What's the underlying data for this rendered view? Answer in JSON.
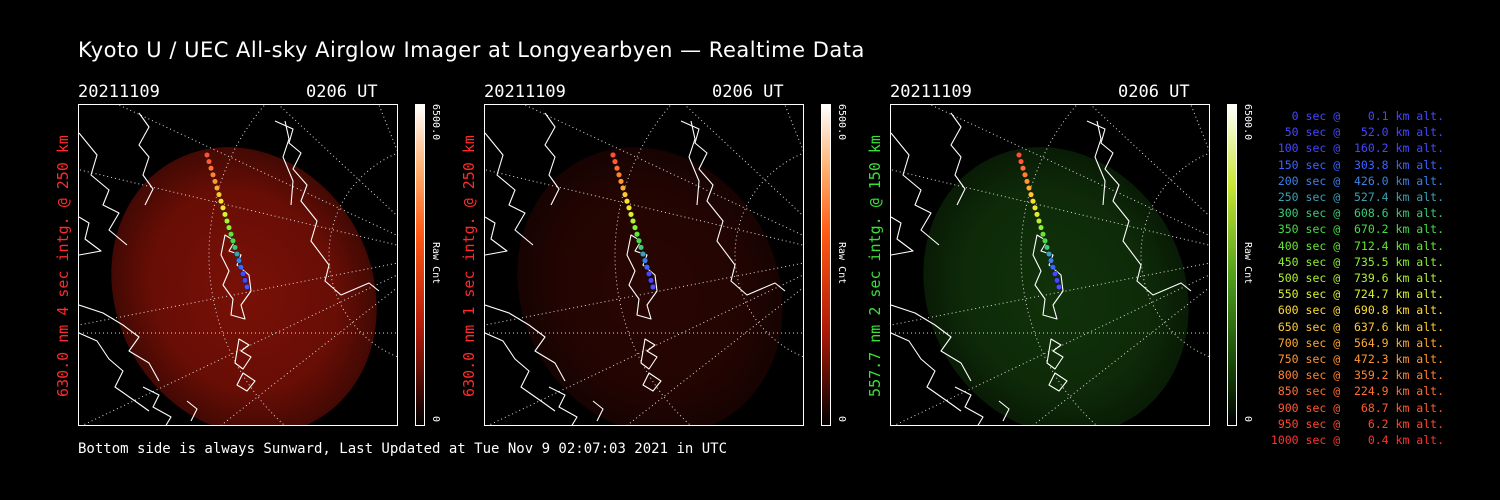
{
  "title": "Kyoto U / UEC All-sky Airglow Imager at Longyearbyen — Realtime Data",
  "footer": "Bottom side is always Sunward, Last Updated at Tue Nov  9 02:07:03 2021 in UTC",
  "panels": [
    {
      "date": "20211109",
      "time": "0206 UT",
      "label": "630.0 nm 4 sec intg. @ 250 km",
      "label_color": "#ff2a2a",
      "cbar_max": "6500.0",
      "cbar_min": "0",
      "cbar_label": "Raw Cnt",
      "glow_color": "#c41a0a",
      "glow_opacity": 0.62,
      "cbar_gradient": "red"
    },
    {
      "date": "20211109",
      "time": "0206 UT",
      "label": "630.0 nm 1 sec intg. @ 250 km",
      "label_color": "#ff2a2a",
      "cbar_max": "6500.0",
      "cbar_min": "0",
      "cbar_label": "Raw Cnt",
      "glow_color": "#5a0c05",
      "glow_opacity": 0.45,
      "cbar_gradient": "red"
    },
    {
      "date": "20211109",
      "time": "0206 UT",
      "label": "557.7 nm 2 sec intg. @ 150 km",
      "label_color": "#38e038",
      "cbar_max": "6500.0",
      "cbar_min": "0",
      "cbar_label": "Raw Cnt",
      "glow_color": "#1d5a12",
      "glow_opacity": 0.55,
      "cbar_gradient": "green"
    }
  ],
  "legend": [
    {
      "text": "   0 sec @    0.1 km alt.",
      "color": "#4646ff"
    },
    {
      "text": "  50 sec @   52.0 km alt.",
      "color": "#4646ff"
    },
    {
      "text": " 100 sec @  160.2 km alt.",
      "color": "#4646ff"
    },
    {
      "text": " 150 sec @  303.8 km alt.",
      "color": "#3c64ff"
    },
    {
      "text": " 200 sec @  426.0 km alt.",
      "color": "#3c82e6"
    },
    {
      "text": " 250 sec @  527.4 km alt.",
      "color": "#3ca0b4"
    },
    {
      "text": " 300 sec @  608.6 km alt.",
      "color": "#3cc878"
    },
    {
      "text": " 350 sec @  670.2 km alt.",
      "color": "#46dc46"
    },
    {
      "text": " 400 sec @  712.4 km alt.",
      "color": "#64e632"
    },
    {
      "text": " 450 sec @  735.5 km alt.",
      "color": "#8cf032"
    },
    {
      "text": " 500 sec @  739.6 km alt.",
      "color": "#b4f032"
    },
    {
      "text": " 550 sec @  724.7 km alt.",
      "color": "#dcf032"
    },
    {
      "text": " 600 sec @  690.8 km alt.",
      "color": "#ffdc32"
    },
    {
      "text": " 650 sec @  637.6 km alt.",
      "color": "#ffc832"
    },
    {
      "text": " 700 sec @  564.9 km alt.",
      "color": "#ffaa32"
    },
    {
      "text": " 750 sec @  472.3 km alt.",
      "color": "#ff9632"
    },
    {
      "text": " 800 sec @  359.2 km alt.",
      "color": "#ff8232"
    },
    {
      "text": " 850 sec @  224.9 km alt.",
      "color": "#ff6e32"
    },
    {
      "text": " 900 sec @   68.7 km alt.",
      "color": "#ff5a32"
    },
    {
      "text": " 950 sec @    6.2 km alt.",
      "color": "#ff4632"
    },
    {
      "text": "1000 sec @    0.4 km alt.",
      "color": "#ff3232"
    }
  ]
}
